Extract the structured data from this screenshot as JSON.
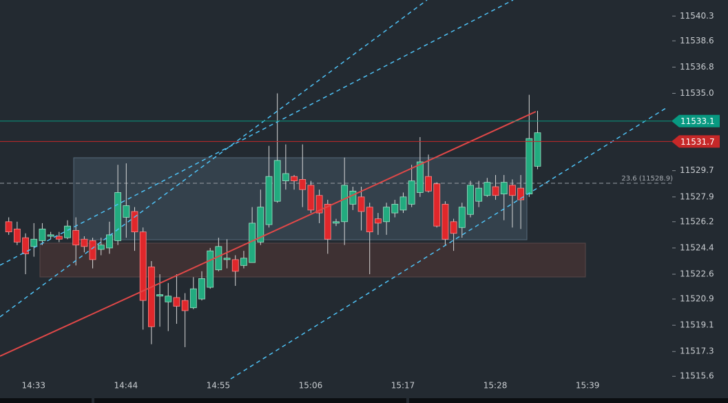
{
  "chart_data": {
    "type": "candlestick",
    "x": [
      "14:30",
      "14:31",
      "14:32",
      "14:33",
      "14:34",
      "14:35",
      "14:36",
      "14:37",
      "14:38",
      "14:39",
      "14:40",
      "14:41",
      "14:42",
      "14:43",
      "14:44",
      "14:45",
      "14:46",
      "14:47",
      "14:48",
      "14:49",
      "14:50",
      "14:51",
      "14:52",
      "14:53",
      "14:54",
      "14:55",
      "14:56",
      "14:57",
      "14:58",
      "14:59",
      "15:00",
      "15:01",
      "15:02",
      "15:03",
      "15:04",
      "15:05",
      "15:06",
      "15:07",
      "15:08",
      "15:09",
      "15:10",
      "15:11",
      "15:12",
      "15:13",
      "15:14",
      "15:15",
      "15:16",
      "15:17",
      "15:18",
      "15:19",
      "15:20",
      "15:21",
      "15:22",
      "15:23",
      "15:24",
      "15:25",
      "15:26",
      "15:27",
      "15:28",
      "15:29",
      "15:30",
      "15:31",
      "15:32",
      "15:33"
    ],
    "open": [
      11526.2,
      11525.7,
      11525.1,
      11524.5,
      11524.9,
      11525.2,
      11525.2,
      11525.1,
      11525.6,
      11525.0,
      11524.9,
      11524.3,
      11524.4,
      11524.9,
      11526.5,
      11526.9,
      11525.5,
      11523.1,
      11521.1,
      11520.7,
      11521.0,
      11520.8,
      11520.3,
      11520.9,
      11521.7,
      11522.9,
      11523.6,
      11523.6,
      11523.2,
      11523.4,
      11524.8,
      11526.0,
      11527.6,
      11529.0,
      11529.3,
      11529.1,
      11528.7,
      11528.0,
      11527.4,
      11526.1,
      11526.2,
      11527.4,
      11527.9,
      11527.2,
      11526.4,
      11526.2,
      11526.8,
      11527.0,
      11527.4,
      11528.2,
      11529.3,
      11528.8,
      11527.4,
      11526.2,
      11525.8,
      11526.7,
      11527.6,
      11528.0,
      11528.6,
      11528.1,
      11528.7,
      11528.5,
      11528.1,
      11530.0
    ],
    "high": [
      11526.5,
      11526.2,
      11525.4,
      11526.1,
      11526.1,
      11525.5,
      11525.5,
      11526.3,
      11526.5,
      11525.2,
      11525.1,
      11525.1,
      11526.2,
      11530.1,
      11530.2,
      11527.2,
      11525.8,
      11523.5,
      11522.6,
      11522.0,
      11522.6,
      11521.3,
      11522.4,
      11522.8,
      11524.4,
      11525.1,
      11525.0,
      11523.9,
      11524.2,
      11527.2,
      11528.4,
      11531.4,
      11535.0,
      11531.5,
      11529.4,
      11531.5,
      11529.0,
      11528.4,
      11527.7,
      11526.4,
      11530.6,
      11528.6,
      11528.6,
      11527.5,
      11526.8,
      11527.5,
      11527.7,
      11528.2,
      11530.1,
      11532.0,
      11530.8,
      11528.9,
      11527.6,
      11526.4,
      11527.5,
      11529.0,
      11529.0,
      11529.2,
      11529.4,
      11529.4,
      11529.1,
      11529.4,
      11534.9,
      11533.8
    ],
    "low": [
      11525.3,
      11524.6,
      11522.6,
      11523.8,
      11524.6,
      11525.0,
      11524.8,
      11525.0,
      11523.2,
      11524.1,
      11523.0,
      11523.9,
      11524.0,
      11524.6,
      11525.1,
      11524.2,
      11518.8,
      11517.8,
      11519.0,
      11518.7,
      11519.2,
      11517.6,
      11520.2,
      11520.8,
      11521.6,
      11522.8,
      11523.0,
      11521.8,
      11523.0,
      11523.4,
      11524.6,
      11525.8,
      11527.5,
      11528.4,
      11528.4,
      11527.2,
      11526.8,
      11526.1,
      11524.0,
      11525.9,
      11524.6,
      11527.0,
      11525.6,
      11522.6,
      11525.3,
      11525.3,
      11526.5,
      11526.8,
      11527.2,
      11527.9,
      11528.2,
      11525.8,
      11524.6,
      11524.2,
      11525.1,
      11526.5,
      11527.2,
      11527.9,
      11527.7,
      11526.3,
      11525.8,
      11525.7,
      11527.9,
      11529.8
    ],
    "close": [
      11525.5,
      11524.8,
      11524.0,
      11525.0,
      11525.7,
      11525.3,
      11525.0,
      11525.9,
      11524.6,
      11524.5,
      11523.6,
      11524.6,
      11525.3,
      11528.2,
      11527.3,
      11525.5,
      11520.8,
      11519.0,
      11521.2,
      11521.1,
      11520.4,
      11520.1,
      11521.6,
      11522.3,
      11524.2,
      11524.5,
      11523.7,
      11522.8,
      11523.7,
      11526.1,
      11527.2,
      11529.3,
      11530.4,
      11529.5,
      11529.0,
      11528.4,
      11527.0,
      11526.8,
      11525.0,
      11526.2,
      11528.7,
      11528.3,
      11526.9,
      11525.5,
      11526.1,
      11527.2,
      11527.4,
      11527.9,
      11529.0,
      11530.3,
      11528.3,
      11525.9,
      11525.0,
      11525.4,
      11527.2,
      11528.7,
      11528.5,
      11528.9,
      11528.0,
      11528.9,
      11528.0,
      11527.7,
      11531.9,
      11532.3
    ],
    "up_color": "#22ab7f",
    "down_color": "#e0272b",
    "xlim": [
      "14:29",
      "15:49"
    ],
    "xticks": [
      "14:33",
      "14:44",
      "14:55",
      "15:06",
      "15:17",
      "15:28",
      "15:39"
    ],
    "ylim": [
      11514.1,
      11541.4
    ],
    "yticks": [
      11540.3,
      11538.6,
      11536.8,
      {
        "value": 11535,
        "label": "11535.0"
      },
      11529.7,
      11527.9,
      11526.2,
      11524.4,
      11522.6,
      11520.9,
      11519.1,
      11517.3,
      11515.6
    ],
    "price_lines": [
      {
        "value": 11533.1,
        "color": "#089981"
      },
      {
        "value": 11531.7,
        "color": "#c62828"
      }
    ],
    "fib_label": "23.6 (11528.9)"
  }
}
